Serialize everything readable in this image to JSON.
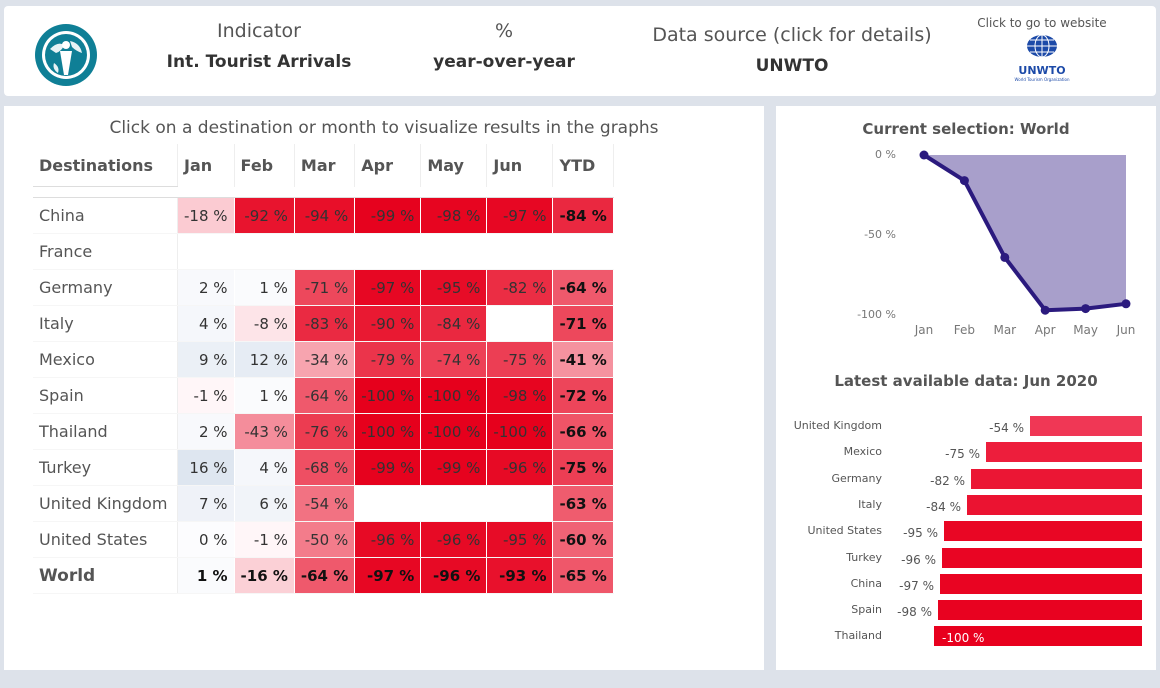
{
  "header": {
    "indicator_label": "Indicator",
    "indicator_value": "Int. Tourist Arrivals",
    "measure_label": "%",
    "measure_value": "year-over-year",
    "source_label": "Data source (click for details)",
    "source_value": "UNWTO",
    "website_label": "Click to go to website",
    "website_brand": "UNWTO",
    "website_subtext": "World Tourism Organization"
  },
  "table": {
    "instruction": "Click on a destination or month to visualize results in the graphs",
    "headers": [
      "Destinations",
      "Jan",
      "Feb",
      "Mar",
      "Apr",
      "May",
      "Jun",
      "YTD"
    ],
    "rows": [
      {
        "name": "China",
        "values": [
          -18,
          -92,
          -94,
          -99,
          -98,
          -97,
          -84
        ],
        "labels": [
          "-18 %",
          "-92 %",
          "-94 %",
          "-99 %",
          "-98 %",
          "-97 %",
          "-84 %"
        ]
      },
      {
        "name": "France",
        "values": [
          null,
          null,
          null,
          null,
          null,
          null,
          null
        ],
        "labels": [
          "",
          "",
          "",
          "",
          "",
          "",
          ""
        ]
      },
      {
        "name": "Germany",
        "values": [
          2,
          1,
          -71,
          -97,
          -95,
          -82,
          -64
        ],
        "labels": [
          "2 %",
          "1 %",
          "-71 %",
          "-97 %",
          "-95 %",
          "-82 %",
          "-64 %"
        ]
      },
      {
        "name": "Italy",
        "values": [
          4,
          -8,
          -83,
          -90,
          -84,
          null,
          -71
        ],
        "labels": [
          "4 %",
          "-8 %",
          "-83 %",
          "-90 %",
          "-84 %",
          "",
          "-71 %"
        ]
      },
      {
        "name": "Mexico",
        "values": [
          9,
          12,
          -34,
          -79,
          -74,
          -75,
          -41
        ],
        "labels": [
          "9 %",
          "12 %",
          "-34 %",
          "-79 %",
          "-74 %",
          "-75 %",
          "-41 %"
        ]
      },
      {
        "name": "Spain",
        "values": [
          -1,
          1,
          -64,
          -100,
          -100,
          -98,
          -72
        ],
        "labels": [
          "-1 %",
          "1 %",
          "-64 %",
          "-100 %",
          "-100 %",
          "-98 %",
          "-72 %"
        ]
      },
      {
        "name": "Thailand",
        "values": [
          2,
          -43,
          -76,
          -100,
          -100,
          -100,
          -66
        ],
        "labels": [
          "2 %",
          "-43 %",
          "-76 %",
          "-100 %",
          "-100 %",
          "-100 %",
          "-66 %"
        ]
      },
      {
        "name": "Turkey",
        "values": [
          16,
          4,
          -68,
          -99,
          -99,
          -96,
          -75
        ],
        "labels": [
          "16 %",
          "4 %",
          "-68 %",
          "-99 %",
          "-99 %",
          "-96 %",
          "-75 %"
        ]
      },
      {
        "name": "United Kingdom",
        "values": [
          7,
          6,
          -54,
          null,
          null,
          null,
          -63
        ],
        "labels": [
          "7 %",
          "6 %",
          "-54 %",
          "",
          "",
          "",
          "-63 %"
        ]
      },
      {
        "name": "United States",
        "values": [
          0,
          -1,
          -50,
          -96,
          -96,
          -95,
          -60
        ],
        "labels": [
          "0 %",
          "-1 %",
          "-50 %",
          "-96 %",
          "-96 %",
          "-95 %",
          "-60 %"
        ]
      },
      {
        "name": "World",
        "values": [
          1,
          -16,
          -64,
          -97,
          -96,
          -93,
          -65
        ],
        "labels": [
          "1 %",
          "-16 %",
          "-64 %",
          "-97 %",
          "-96 %",
          "-93 %",
          "-65 %"
        ]
      }
    ]
  },
  "line_chart": {
    "title": "Current selection: World",
    "months": [
      "Jan",
      "Feb",
      "Mar",
      "Apr",
      "May",
      "Jun"
    ],
    "values": [
      1,
      -16,
      -64,
      -97,
      -96,
      -93
    ],
    "y_ticks": [
      "0 %",
      "-50 %",
      "-100 %"
    ],
    "y_range": [
      -100,
      0
    ],
    "area_color": "#a89fcb",
    "line_color": "#2b1a7e"
  },
  "bar_chart": {
    "title": "Latest available data: Jun 2020",
    "items": [
      {
        "name": "United Kingdom",
        "value": -54,
        "label": "-54 %"
      },
      {
        "name": "Mexico",
        "value": -75,
        "label": "-75 %"
      },
      {
        "name": "Germany",
        "value": -82,
        "label": "-82 %"
      },
      {
        "name": "Italy",
        "value": -84,
        "label": "-84 %"
      },
      {
        "name": "United States",
        "value": -95,
        "label": "-95 %"
      },
      {
        "name": "Turkey",
        "value": -96,
        "label": "-96 %"
      },
      {
        "name": "China",
        "value": -97,
        "label": "-97 %"
      },
      {
        "name": "Spain",
        "value": -98,
        "label": "-98 %"
      },
      {
        "name": "Thailand",
        "value": -100,
        "label": "-100 %"
      }
    ]
  },
  "chart_data": [
    {
      "type": "line",
      "title": "Current selection: World",
      "x": [
        "Jan",
        "Feb",
        "Mar",
        "Apr",
        "May",
        "Jun"
      ],
      "series": [
        {
          "name": "World",
          "values": [
            1,
            -16,
            -64,
            -97,
            -96,
            -93
          ]
        }
      ],
      "ylim": [
        -100,
        0
      ],
      "xlabel": "",
      "ylabel": ""
    },
    {
      "type": "bar",
      "title": "Latest available data: Jun 2020",
      "categories": [
        "United Kingdom",
        "Mexico",
        "Germany",
        "Italy",
        "United States",
        "Turkey",
        "China",
        "Spain",
        "Thailand"
      ],
      "values": [
        -54,
        -75,
        -82,
        -84,
        -95,
        -96,
        -97,
        -98,
        -100
      ],
      "xlabel": "",
      "ylabel": ""
    }
  ]
}
